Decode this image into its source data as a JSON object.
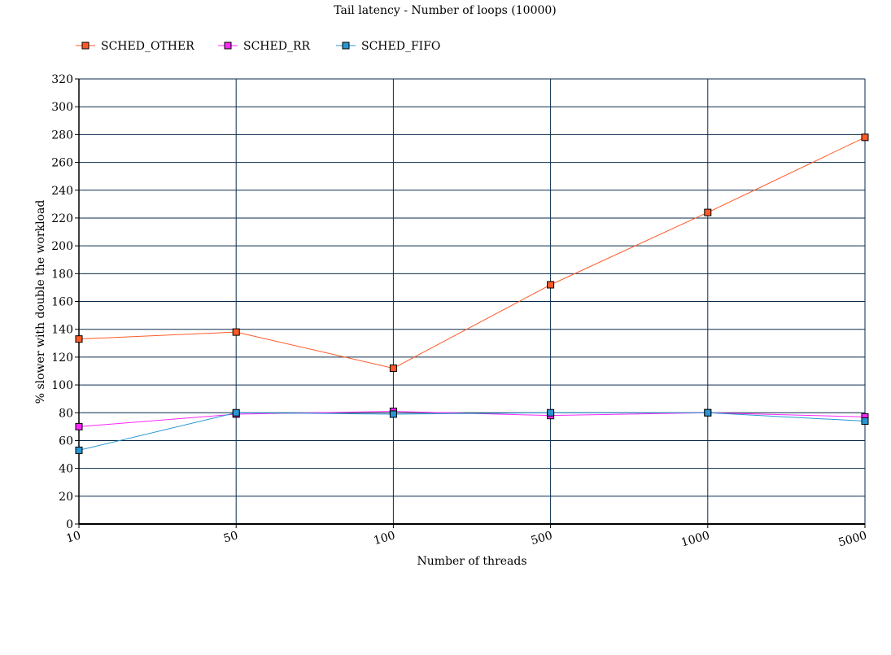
{
  "chart_data": {
    "type": "line",
    "title": "Tail latency - Number of loops (10000)",
    "xlabel": "Number of threads",
    "ylabel": "% slower with double the workload",
    "categories": [
      "10",
      "50",
      "100",
      "500",
      "1000",
      "5000"
    ],
    "ylim": [
      0,
      320
    ],
    "yticks": [
      0,
      20,
      40,
      60,
      80,
      100,
      120,
      140,
      160,
      180,
      200,
      220,
      240,
      260,
      280,
      300,
      320
    ],
    "grid": true,
    "legend_position": "top-left",
    "series": [
      {
        "name": "SCHED_OTHER",
        "color": "#ff5a28",
        "values": [
          133,
          138,
          112,
          172,
          224,
          278
        ]
      },
      {
        "name": "SCHED_RR",
        "color": "#ff28ff",
        "values": [
          70,
          79,
          81,
          78,
          80,
          77
        ]
      },
      {
        "name": "SCHED_FIFO",
        "color": "#2896d2",
        "values": [
          53,
          80,
          79,
          80,
          80,
          74
        ]
      }
    ]
  }
}
